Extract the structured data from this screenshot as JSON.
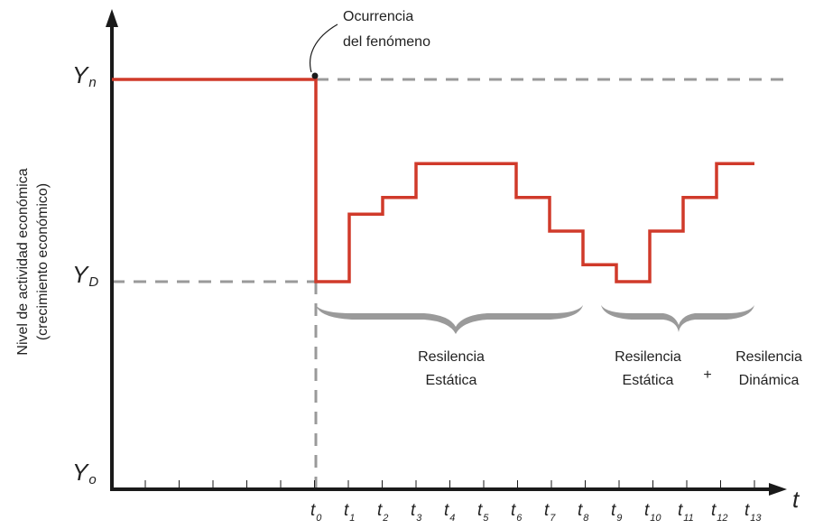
{
  "chart_data": {
    "type": "line",
    "title": "",
    "ylabel": [
      "Nivel de actividad económica",
      "(crecimiento económico)"
    ],
    "xlabel": "t",
    "y_levels": [
      {
        "base": "Y",
        "sub": "n"
      },
      {
        "base": "Y",
        "sub": "D"
      },
      {
        "base": "Y",
        "sub": "o"
      }
    ],
    "x_ticks": [
      {
        "base": "t",
        "sub": "0"
      },
      {
        "base": "t",
        "sub": "1"
      },
      {
        "base": "t",
        "sub": "2"
      },
      {
        "base": "t",
        "sub": "3"
      },
      {
        "base": "t",
        "sub": "4"
      },
      {
        "base": "t",
        "sub": "5"
      },
      {
        "base": "t",
        "sub": "6"
      },
      {
        "base": "t",
        "sub": "7"
      },
      {
        "base": "t",
        "sub": "8"
      },
      {
        "base": "t",
        "sub": "9"
      },
      {
        "base": "t",
        "sub": "10"
      },
      {
        "base": "t",
        "sub": "11"
      },
      {
        "base": "t",
        "sub": "12"
      },
      {
        "base": "t",
        "sub": "13"
      }
    ],
    "series": [
      {
        "color": "#d03a2a",
        "step_levels": [
          0.6,
          0.65,
          0.75,
          0.75,
          0.75,
          0.65,
          0.55,
          0.45,
          0.4,
          0.55,
          0.65,
          0.75,
          0.75
        ],
        "pre_event_level": 1.0
      }
    ],
    "annotations": {
      "event": [
        "Ocurrencia",
        "del fenómeno"
      ],
      "brace1_label": [
        "Resilencia",
        "Estática"
      ],
      "brace2_label_a": [
        "Resilencia",
        "Estática"
      ],
      "plus": "+",
      "brace2_label_b": [
        "Resilencia",
        "Dinámica"
      ]
    },
    "grid": false
  }
}
